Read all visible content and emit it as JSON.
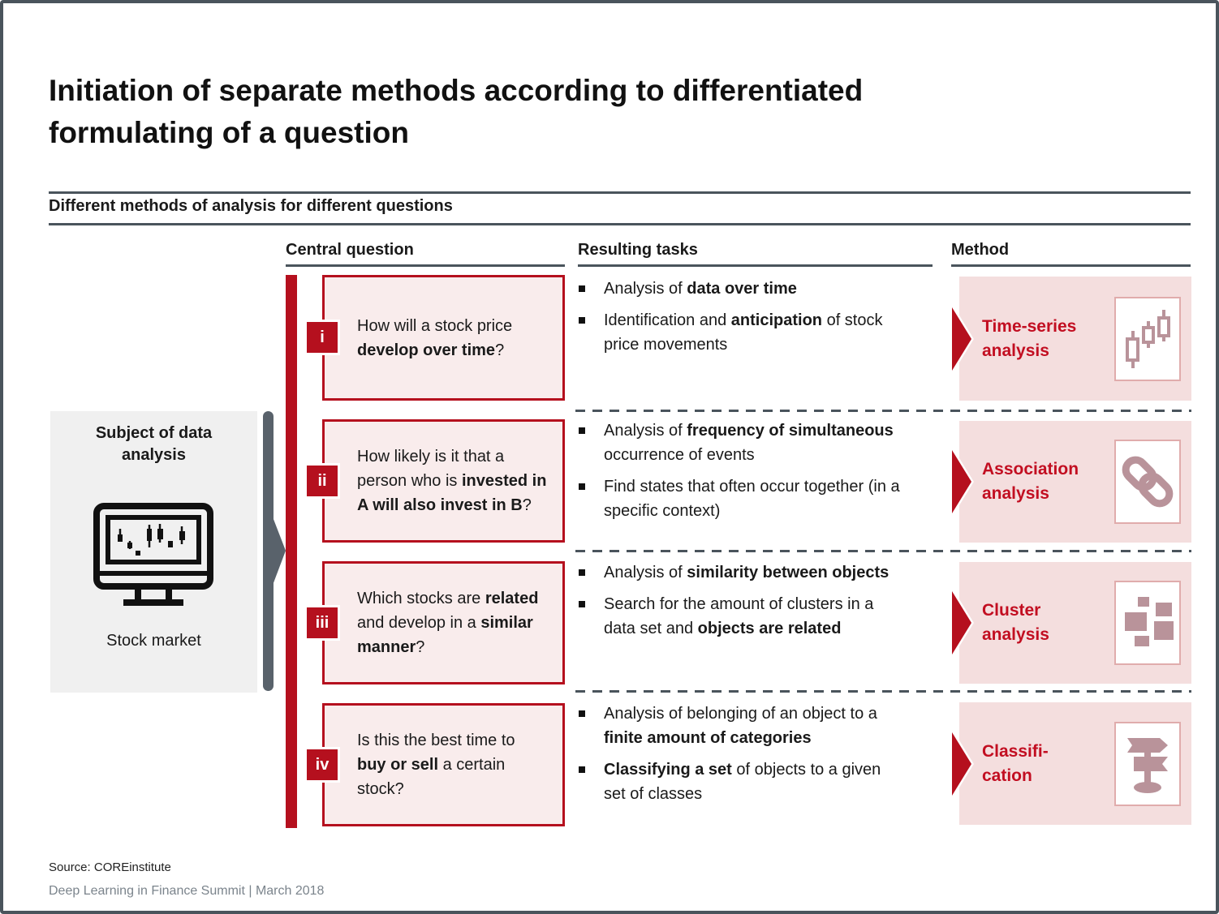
{
  "slide": {
    "title_line1": "Initiation of separate methods according to differentiated",
    "title_line2": "formulating of a question",
    "section_header": "Different methods of analysis for different questions",
    "columns": {
      "central_question": "Central question",
      "resulting_tasks": "Resulting tasks",
      "method": "Method"
    },
    "subject": {
      "title": "Subject of data analysis",
      "caption": "Stock market",
      "icon": "stock-market-monitor-icon"
    },
    "rows": [
      {
        "numeral": "i",
        "question": [
          {
            "t": "How will a stock price "
          },
          {
            "t": "develop over time",
            "b": true
          },
          {
            "t": "?"
          }
        ],
        "tasks": [
          [
            {
              "t": "Analysis of "
            },
            {
              "t": "data over time",
              "b": true
            }
          ],
          [
            {
              "t": "Identification and "
            },
            {
              "t": "anticipation",
              "b": true
            },
            {
              "t": " of stock price movements"
            }
          ]
        ],
        "method": {
          "label_lines": [
            "Time-series",
            "analysis"
          ],
          "icon": "candlestick-chart-icon"
        }
      },
      {
        "numeral": "ii",
        "question": [
          {
            "t": "How likely is it that a person who is "
          },
          {
            "t": "invested in A will also invest in B",
            "b": true
          },
          {
            "t": "?"
          }
        ],
        "tasks": [
          [
            {
              "t": "Analysis of "
            },
            {
              "t": "frequency of simultaneous",
              "b": true
            },
            {
              "t": " occurrence of events"
            }
          ],
          [
            {
              "t": "Find states that often occur together (in a specific context)"
            }
          ]
        ],
        "method": {
          "label_lines": [
            "Association",
            "analysis"
          ],
          "icon": "chain-link-icon"
        }
      },
      {
        "numeral": "iii",
        "question": [
          {
            "t": "Which stocks are "
          },
          {
            "t": "related",
            "b": true
          },
          {
            "t": " and develop in a "
          },
          {
            "t": "similar manner",
            "b": true
          },
          {
            "t": "?"
          }
        ],
        "tasks": [
          [
            {
              "t": "Analysis of "
            },
            {
              "t": "similarity between objects",
              "b": true
            }
          ],
          [
            {
              "t": "Search for the amount of clusters in a data set and "
            },
            {
              "t": "objects are related",
              "b": true
            }
          ]
        ],
        "method": {
          "label_lines": [
            "Cluster",
            "analysis"
          ],
          "icon": "cluster-squares-icon"
        }
      },
      {
        "numeral": "iv",
        "question": [
          {
            "t": "Is this the best time to "
          },
          {
            "t": "buy or sell",
            "b": true
          },
          {
            "t": " a certain stock?"
          }
        ],
        "tasks": [
          [
            {
              "t": "Analysis of belonging of an object to a "
            },
            {
              "t": "finite amount of categories",
              "b": true
            }
          ],
          [
            {
              "t": "Classifying a set",
              "b": true
            },
            {
              "t": " of objects to a given set of classes"
            }
          ]
        ],
        "method": {
          "label_lines": [
            "Classifi-",
            "cation"
          ],
          "icon": "signpost-icon"
        }
      }
    ],
    "footer": {
      "source": "Source: COREinstitute",
      "event": "Deep Learning in Finance Summit | March 2018"
    },
    "colors": {
      "accent_red": "#B5101E",
      "method_text_red": "#C20E21",
      "question_pink": "#F9ECEC",
      "method_pink": "#F4DEDE",
      "icon_mauve": "#B9939A",
      "slate": "#4A545C",
      "subject_gray": "#F0F0F0",
      "footer_gray": "#7B848C"
    }
  }
}
